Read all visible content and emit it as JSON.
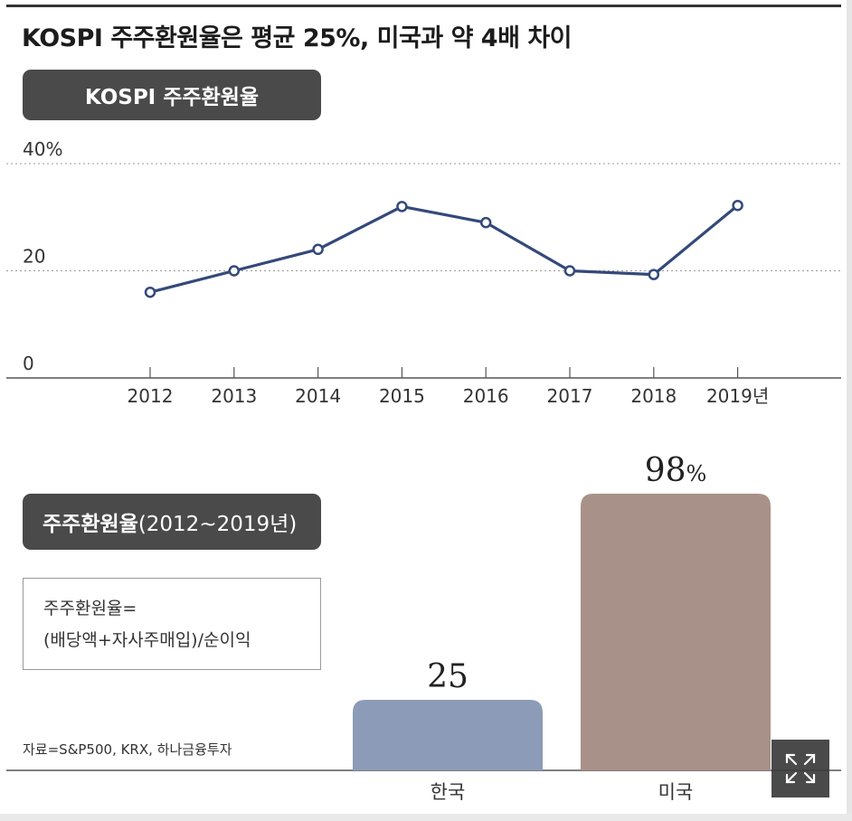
{
  "title": "KOSPI 주주환원율은 평균 25%, 미국과 약 4배 차이",
  "line_panel_label": "KOSPI 주주환원율",
  "bar_panel_label": {
    "bold": "주주환원율",
    "normal": "(2012~2019년)"
  },
  "formula": {
    "line1": "주주환원율=",
    "line2": "(배당액+자사주매입)/순이익"
  },
  "source": "자료=S&P500, KRX, 하나금융투자",
  "expand_icon": "expand-arrows-icon",
  "colors": {
    "line": "#34497a",
    "korea_bar": "#8c9bb8",
    "us_bar": "#a89189",
    "pill": "#4a4a4a"
  },
  "chart_data": [
    {
      "type": "line",
      "title": "KOSPI 주주환원율",
      "x": [
        "2012",
        "2013",
        "2014",
        "2015",
        "2016",
        "2017",
        "2018",
        "2019년"
      ],
      "series": [
        {
          "values": [
            16,
            20,
            24,
            32,
            29,
            20,
            19.3,
            32.2
          ]
        }
      ],
      "yticks": [
        "40%",
        "20",
        "0"
      ],
      "ylim": [
        0,
        40
      ],
      "grid": "dotted at 20 and 40"
    },
    {
      "type": "bar",
      "title": "주주환원율(2012~2019년)",
      "categories": [
        "한국",
        "미국"
      ],
      "values": [
        25,
        98
      ],
      "value_labels": [
        "25",
        "98%"
      ]
    }
  ]
}
